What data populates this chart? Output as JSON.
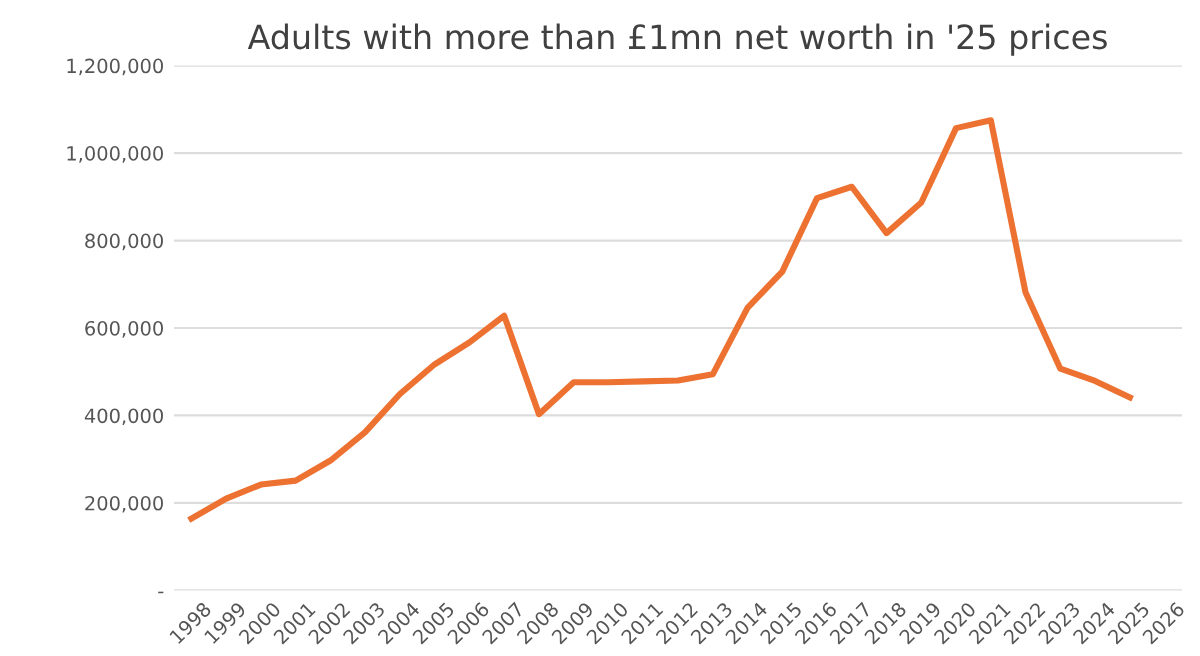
{
  "chart_data": {
    "type": "line",
    "title": "Adults with more than £1mn net worth in '25 prices",
    "categories": [
      "1998",
      "1999",
      "2000",
      "2001",
      "2002",
      "2003",
      "2004",
      "2005",
      "2006",
      "2007",
      "2008",
      "2009",
      "2010",
      "2011",
      "2012",
      "2013",
      "2014",
      "2015",
      "2016",
      "2017",
      "2018",
      "2019",
      "2020",
      "2021",
      "2022",
      "2023",
      "2024",
      "2025",
      "2026"
    ],
    "series": [
      {
        "color": "#ed7232",
        "values": [
          164000,
          210000,
          242000,
          251000,
          297000,
          362000,
          449000,
          517000,
          567000,
          628000,
          403000,
          476000,
          476000,
          478000,
          480000,
          494000,
          646000,
          729000,
          897000,
          923000,
          817000,
          887000,
          1057000,
          1075000,
          681000,
          507000,
          479000,
          441000,
          null
        ]
      }
    ],
    "ylim": [
      0,
      1200000
    ],
    "yticks": [
      {
        "value": 0,
        "label": "-"
      },
      {
        "value": 200000,
        "label": "200,000"
      },
      {
        "value": 400000,
        "label": "400,000"
      },
      {
        "value": 600000,
        "label": "600,000"
      },
      {
        "value": 800000,
        "label": "800,000"
      },
      {
        "value": 1000000,
        "label": "1,000,000"
      },
      {
        "value": 1200000,
        "label": "1,200,000"
      }
    ],
    "grid": "y",
    "legend": false,
    "marker": "none",
    "line_style": "solid"
  }
}
